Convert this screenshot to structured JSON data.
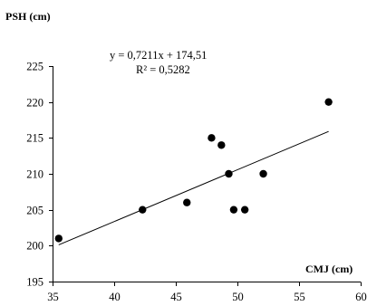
{
  "chart_data": {
    "type": "scatter",
    "title": "",
    "xlabel": "CMJ (cm)",
    "ylabel": "PSH (cm)",
    "xlim": [
      35,
      60
    ],
    "ylim": [
      195,
      225
    ],
    "x_ticks": [
      35,
      40,
      45,
      50,
      55,
      60
    ],
    "y_ticks": [
      195,
      200,
      205,
      210,
      215,
      220,
      225
    ],
    "x_tick_labels": [
      "35",
      "40",
      "45",
      "50",
      "55",
      "60"
    ],
    "y_tick_labels": [
      "195",
      "200",
      "205",
      "210",
      "215",
      "220",
      "225"
    ],
    "grid": false,
    "legend": "none",
    "points": [
      {
        "x": 35.5,
        "y": 201
      },
      {
        "x": 42.3,
        "y": 205
      },
      {
        "x": 45.9,
        "y": 206
      },
      {
        "x": 47.9,
        "y": 215
      },
      {
        "x": 48.7,
        "y": 214
      },
      {
        "x": 49.3,
        "y": 210
      },
      {
        "x": 49.7,
        "y": 205
      },
      {
        "x": 50.6,
        "y": 205
      },
      {
        "x": 52.1,
        "y": 210
      },
      {
        "x": 57.4,
        "y": 220
      }
    ],
    "trendline": {
      "type": "linear",
      "slope": 0.7211,
      "intercept": 174.51,
      "x_start": 35.5,
      "x_end": 57.4,
      "equation_label": "y = 0,7211x + 174,51",
      "r2_label": "R² = 0,5282"
    },
    "colors": {
      "points": "#000000",
      "axes": "#000000",
      "trendline": "#000000"
    }
  }
}
